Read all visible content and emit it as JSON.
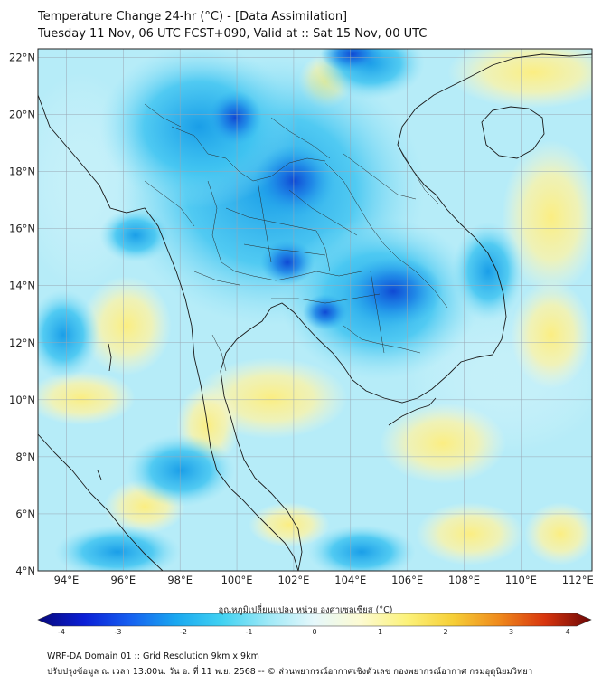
{
  "title_line1": "Temperature Change 24-hr (°C) - [Data Assimilation]",
  "title_line2": "Tuesday 11 Nov, 06 UTC FCST+090, Valid at :: Sat 15 Nov, 00 UTC",
  "map": {
    "lon_range": [
      93,
      112.5
    ],
    "lat_range": [
      4,
      22.3
    ],
    "lon_labels": [
      "94°E",
      "96°E",
      "98°E",
      "100°E",
      "102°E",
      "104°E",
      "106°E",
      "108°E",
      "110°E",
      "112°E"
    ],
    "lon_values": [
      94,
      96,
      98,
      100,
      102,
      104,
      106,
      108,
      110,
      112
    ],
    "lat_labels": [
      "4°N",
      "6°N",
      "8°N",
      "10°N",
      "12°N",
      "14°N",
      "16°N",
      "18°N",
      "20°N",
      "22°N"
    ],
    "lat_values": [
      4,
      6,
      8,
      10,
      12,
      14,
      16,
      18,
      20,
      22
    ],
    "grid_color": "#9aa7b4",
    "coastline_color": "#1a1a1a"
  },
  "colorbar": {
    "title": "อุณหภูมิเปลี่ยนแปลง หน่วย องศาเซลเซียส (°C)",
    "min": -4,
    "max": 4,
    "ticks": [
      "-4",
      "-3",
      "-2",
      "-1",
      "0",
      "1",
      "2",
      "3",
      "4"
    ],
    "tick_values": [
      -4,
      -3,
      -2,
      -1,
      0,
      1,
      2,
      3,
      4
    ],
    "colors": [
      "#08087a",
      "#0b1fd6",
      "#1660f0",
      "#1aa8f0",
      "#41d2f2",
      "#9fe9f7",
      "#e6f8fb",
      "#fdfbd2",
      "#fcf27a",
      "#f6cf37",
      "#ef8a1c",
      "#d8350e",
      "#6b0606"
    ]
  },
  "footer_line1": "WRF-DA Domain 01 :: Grid Resolution 9km x 9km",
  "footer_line2": "ปรับปรุงข้อมูล ณ เวลา 13:00น. วัน อ. ที่ 11 พ.ย. 2568 -- © ส่วนพยากรณ์อากาศเชิงตัวเลข กองพยากรณ์อากาศ กรมอุตุนิยมวิทยา"
}
